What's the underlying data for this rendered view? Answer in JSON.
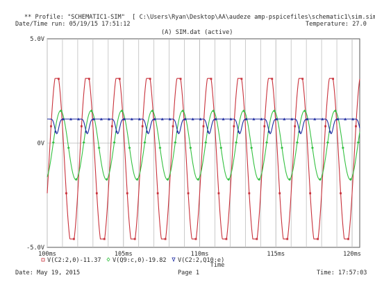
{
  "header": {
    "profile_line": "** Profile: \"SCHEMATIC1-SIM\"  [ C:\\Users\\Ryan\\Desktop\\AA\\audeze amp-pspicefiles\\schematic1\\sim.sim ]",
    "datetime_run": "Date/Time run: 05/19/15 17:51:12",
    "temperature": "Temperature: 27.0"
  },
  "plot_title": "(A) SIM.dat (active)",
  "footer": {
    "date": "Date: May 19, 2015",
    "page": "Page 1",
    "time": "Time: 17:57:03"
  },
  "colors": {
    "red": "#c8303a",
    "green": "#33c040",
    "blue": "#1c2aa0",
    "grid": "#bdbdbd",
    "frame": "#555555",
    "text": "#2a2a2a"
  },
  "chart_data": {
    "type": "line",
    "title": "(A) SIM.dat (active)",
    "xlabel": "Time",
    "ylabel": "",
    "x_unit": "ms",
    "xlim": [
      100,
      120.5
    ],
    "ylim": [
      -5.0,
      5.0
    ],
    "grid": true,
    "x_ticks": [
      "100ms",
      "105ms",
      "110ms",
      "115ms",
      "120ms"
    ],
    "y_ticks": [
      "5.0V",
      "0V",
      "-5.0V"
    ],
    "legend_position": "bottom-left",
    "series": [
      {
        "name": "V(C2:2,0)-11.37",
        "color_key": "red",
        "marker": "square",
        "shape": "clipped sine",
        "frequency_khz": 0.5,
        "phase_ms": 0.125,
        "offset_v": -0.8,
        "amplitude_v": 4.2,
        "clip_high_v": 3.1,
        "clip_low_v": -4.6
      },
      {
        "name": "V(Q9:c,0)-19.82",
        "color_key": "green",
        "marker": "diamond",
        "shape": "sine",
        "frequency_khz": 0.5,
        "phase_ms": 0.375,
        "offset_v": -0.1,
        "amplitude_v": 1.65
      },
      {
        "name": "V(C2:2,Q10:e)",
        "color_key": "blue",
        "marker": "triangle",
        "shape": "dips",
        "frequency_khz": 0.5,
        "phase_ms": 0.625,
        "baseline_v": 1.15,
        "dip_depth_v": 0.7
      }
    ]
  }
}
